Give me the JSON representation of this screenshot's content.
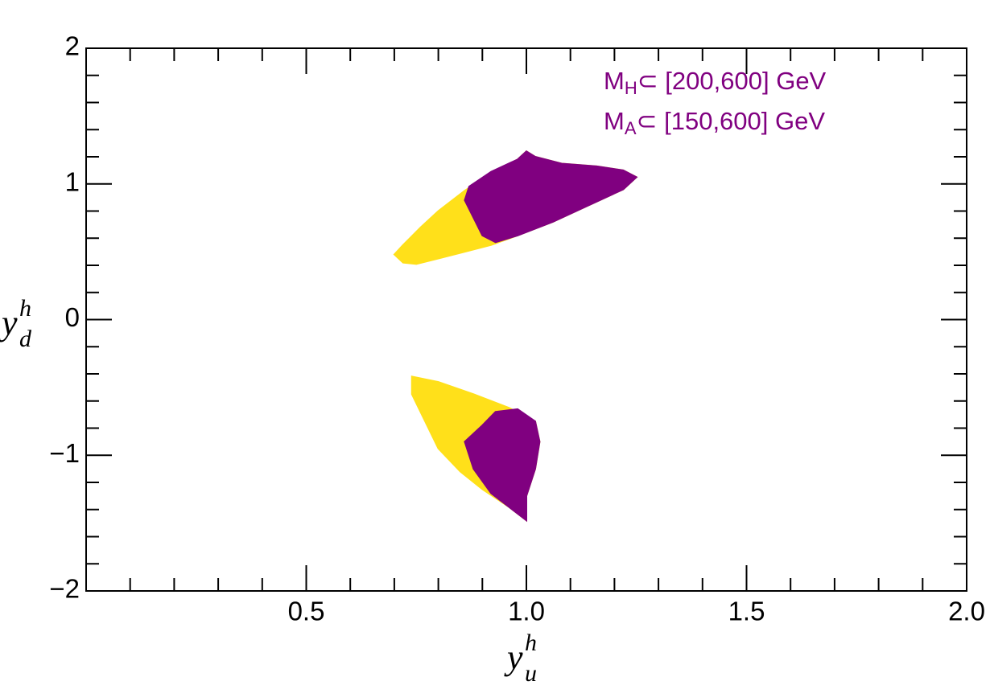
{
  "chart_data": {
    "type": "scatter",
    "xlabel": {
      "base": "y",
      "sub": "u",
      "sup": "h"
    },
    "ylabel": {
      "base": "y",
      "sub": "d",
      "sup": "h"
    },
    "annotations": [
      {
        "main": "M",
        "sub": "H",
        "rest": "⊂ [200,600] GeV"
      },
      {
        "main": "M",
        "sub": "A",
        "rest": "⊂ [150,600] GeV"
      }
    ],
    "annotation_color": "#800080",
    "xlim": [
      0,
      2
    ],
    "ylim": [
      -2,
      2
    ],
    "xticks": [
      0.5,
      {
        "value": 1,
        "label": "1.0"
      },
      1.5,
      {
        "value": 2,
        "label": "2.0"
      }
    ],
    "yticks": [
      {
        "value": -2,
        "label": "−2"
      },
      {
        "value": -1,
        "label": "−1"
      },
      0,
      1,
      2
    ],
    "xminorticks": [
      0.1,
      0.2,
      0.3,
      0.4,
      0.6,
      0.7,
      0.8,
      0.9,
      1.1,
      1.2,
      1.3,
      1.4,
      1.6,
      1.7,
      1.8,
      1.9
    ],
    "yminorticks": [
      -1.8,
      -1.6,
      -1.4,
      -1.2,
      -0.8,
      -0.6,
      -0.4,
      -0.2,
      0.2,
      0.4,
      0.6,
      0.8,
      1.2,
      1.4,
      1.6,
      1.8
    ],
    "series": [
      {
        "color": "#ffe01a",
        "x": [
          0.7,
          0.72,
          0.76,
          0.8,
          0.86,
          0.92,
          0.98,
          1.0,
          1.02,
          1.08,
          1.16,
          1.22,
          1.25,
          1.22,
          1.14,
          1.06,
          0.98,
          0.92,
          0.86,
          0.8,
          0.75,
          0.72
        ],
        "values": [
          0.48,
          0.55,
          0.68,
          0.8,
          0.95,
          1.08,
          1.18,
          1.24,
          1.2,
          1.15,
          1.13,
          1.1,
          1.05,
          0.96,
          0.84,
          0.72,
          0.62,
          0.55,
          0.5,
          0.45,
          0.41,
          0.42
        ]
      },
      {
        "color": "#800080",
        "x": [
          0.87,
          0.92,
          0.98,
          1.0,
          1.02,
          1.08,
          1.16,
          1.22,
          1.25,
          1.22,
          1.14,
          1.06,
          0.98,
          0.93,
          0.9,
          0.88,
          0.86
        ],
        "values": [
          0.98,
          1.09,
          1.18,
          1.24,
          1.2,
          1.15,
          1.13,
          1.1,
          1.05,
          0.96,
          0.84,
          0.72,
          0.62,
          0.57,
          0.62,
          0.75,
          0.88
        ]
      },
      {
        "color": "#ffe01a",
        "x": [
          0.74,
          0.8,
          0.88,
          0.96,
          1.02,
          1.03,
          1.02,
          1.0,
          1.0,
          0.96,
          0.9,
          0.85,
          0.8,
          0.77,
          0.74
        ],
        "values": [
          -0.42,
          -0.46,
          -0.55,
          -0.65,
          -0.75,
          -0.9,
          -1.1,
          -1.3,
          -1.48,
          -1.38,
          -1.25,
          -1.12,
          -0.95,
          -0.75,
          -0.55
        ]
      },
      {
        "color": "#800080",
        "x": [
          0.93,
          0.98,
          1.02,
          1.03,
          1.02,
          1.0,
          1.0,
          0.96,
          0.92,
          0.88,
          0.86,
          0.9
        ],
        "values": [
          -0.68,
          -0.66,
          -0.75,
          -0.9,
          -1.1,
          -1.3,
          -1.48,
          -1.38,
          -1.28,
          -1.1,
          -0.9,
          -0.78
        ]
      }
    ]
  }
}
